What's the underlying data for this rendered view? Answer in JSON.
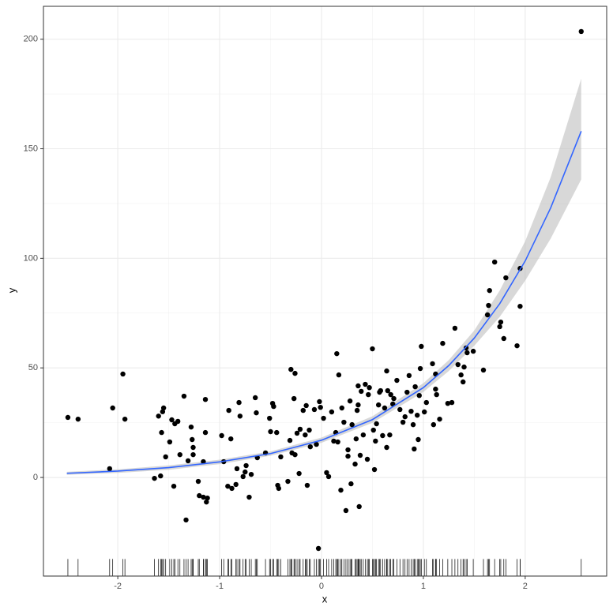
{
  "chart_data": {
    "type": "scatter",
    "xlabel": "x",
    "ylabel": "y",
    "xlim": [
      -2.73,
      2.8
    ],
    "ylim": [
      -45,
      215
    ],
    "xticks": [
      -2,
      -1,
      0,
      1,
      2
    ],
    "yticks": [
      0,
      50,
      100,
      150,
      200
    ],
    "grid": true,
    "rug": true,
    "color": "#000000",
    "x": [
      -2.49,
      -2.39,
      -2.08,
      -2.05,
      -1.95,
      -1.93,
      -1.64,
      -1.6,
      -1.58,
      -1.57,
      -1.56,
      -1.55,
      -1.53,
      -1.49,
      -1.47,
      -1.45,
      -1.44,
      -1.41,
      -1.39,
      -1.35,
      -1.33,
      -1.31,
      -1.28,
      -1.27,
      -1.26,
      -1.26,
      -1.21,
      -1.2,
      -1.16,
      -1.16,
      -1.14,
      -1.14,
      -1.13,
      -1.12,
      -0.98,
      -0.96,
      -0.92,
      -0.91,
      -0.89,
      -0.88,
      -0.84,
      -0.83,
      -0.81,
      -0.8,
      -0.77,
      -0.75,
      -0.74,
      -0.71,
      -0.69,
      -0.65,
      -0.64,
      -0.63,
      -0.55,
      -0.51,
      -0.5,
      -0.48,
      -0.47,
      -0.44,
      -0.43,
      -0.42,
      -0.4,
      -0.33,
      -0.31,
      -0.3,
      -0.29,
      -0.27,
      -0.26,
      -0.26,
      -0.24,
      -0.22,
      -0.21,
      -0.18,
      -0.16,
      -0.15,
      -0.14,
      -0.12,
      -0.11,
      -0.07,
      -0.05,
      -0.03,
      -0.02,
      -0.01,
      0.02,
      0.05,
      0.07,
      0.1,
      0.12,
      0.14,
      0.15,
      0.16,
      0.17,
      0.19,
      0.2,
      0.22,
      0.24,
      0.26,
      0.26,
      0.28,
      0.29,
      0.3,
      0.33,
      0.34,
      0.35,
      0.36,
      0.36,
      0.37,
      0.38,
      0.39,
      0.41,
      0.43,
      0.45,
      0.46,
      0.47,
      0.5,
      0.51,
      0.52,
      0.53,
      0.54,
      0.56,
      0.57,
      0.58,
      0.6,
      0.62,
      0.64,
      0.64,
      0.65,
      0.67,
      0.68,
      0.7,
      0.71,
      0.74,
      0.77,
      0.8,
      0.82,
      0.84,
      0.86,
      0.88,
      0.9,
      0.91,
      0.92,
      0.94,
      0.95,
      0.96,
      0.97,
      0.98,
      1.01,
      1.03,
      1.09,
      1.1,
      1.12,
      1.12,
      1.13,
      1.16,
      1.19,
      1.24,
      1.28,
      1.31,
      1.34,
      1.37,
      1.39,
      1.4,
      1.42,
      1.43,
      1.49,
      1.59,
      1.63,
      1.64,
      1.65,
      1.7,
      1.75,
      1.76,
      1.79,
      1.81,
      1.92,
      1.95,
      1.95,
      2.55
    ],
    "values": [
      27.4,
      26.6,
      4,
      31.7,
      47.2,
      26.6,
      -0.4,
      28,
      0.7,
      20.5,
      30,
      31.7,
      9.4,
      16.2,
      26.3,
      -4,
      24.5,
      25.6,
      10.4,
      37.1,
      -19.4,
      7.6,
      23,
      17.3,
      13.7,
      10.4,
      -1.8,
      -8.3,
      7.2,
      -9,
      20.5,
      35.6,
      -11.2,
      -9.4,
      19.1,
      7.2,
      -4,
      30.6,
      17.6,
      -5,
      -3.2,
      4,
      34.2,
      28,
      0.4,
      2.5,
      5.4,
      -9,
      1.4,
      36.4,
      29.5,
      9,
      11.2,
      27,
      20.9,
      33.8,
      32.4,
      20.5,
      -3.6,
      -5,
      9.4,
      -1.8,
      16.9,
      49.3,
      11.2,
      36,
      47.5,
      10.4,
      20.2,
      1.8,
      22,
      30.6,
      19.4,
      32.8,
      -3.6,
      21.6,
      14,
      31,
      15.1,
      -32.4,
      34.6,
      32,
      27,
      2.2,
      0.4,
      29.9,
      16.6,
      20.5,
      56.5,
      16.2,
      46.8,
      -5.8,
      31.7,
      25.2,
      -15.1,
      9.7,
      12.6,
      34.9,
      -2.9,
      24.1,
      6.1,
      17.6,
      30.6,
      41.8,
      33.1,
      -13.3,
      10.1,
      39.3,
      19.4,
      42.5,
      8.3,
      37.8,
      41,
      58.7,
      21.6,
      3.6,
      16.6,
      24.5,
      33.1,
      38.9,
      39.6,
      19.1,
      31.7,
      48.6,
      13.7,
      39.6,
      19.4,
      37.8,
      33.5,
      36,
      44.3,
      31,
      25.2,
      27.7,
      38.9,
      46.5,
      30.2,
      24.1,
      13,
      41.4,
      28.4,
      17.3,
      37.4,
      49.7,
      59.8,
      29.9,
      34.2,
      51.9,
      24.1,
      47.2,
      40.3,
      37.8,
      26.6,
      61.2,
      33.8,
      34.2,
      68.1,
      51.5,
      46.8,
      43.6,
      50.4,
      59.1,
      56.9,
      57.6,
      49,
      74.2,
      78.5,
      85.3,
      98.3,
      68.8,
      70.9,
      63.4,
      91.1,
      60.1,
      95.4,
      78.1,
      203.5
    ],
    "smooth": {
      "color": "#3366ff",
      "band_color": "#bebebe",
      "x": [
        -2.5,
        -2,
        -1.5,
        -1,
        -0.5,
        0,
        0.5,
        1,
        1.25,
        1.5,
        1.75,
        2,
        2.25,
        2.55
      ],
      "values": [
        1.9,
        2.9,
        4.5,
        7.1,
        10.9,
        17,
        26.4,
        41,
        51.1,
        63.6,
        79.3,
        98.8,
        123,
        158
      ],
      "lower": [
        1.2,
        2.1,
        3.5,
        6.1,
        9.9,
        15.8,
        24.9,
        39,
        48.6,
        60.1,
        73.3,
        89.8,
        109,
        136
      ],
      "upper": [
        2.6,
        3.7,
        5.5,
        8.1,
        11.9,
        18.2,
        27.9,
        43,
        53.6,
        67.1,
        85.3,
        107.8,
        137,
        182
      ]
    }
  }
}
